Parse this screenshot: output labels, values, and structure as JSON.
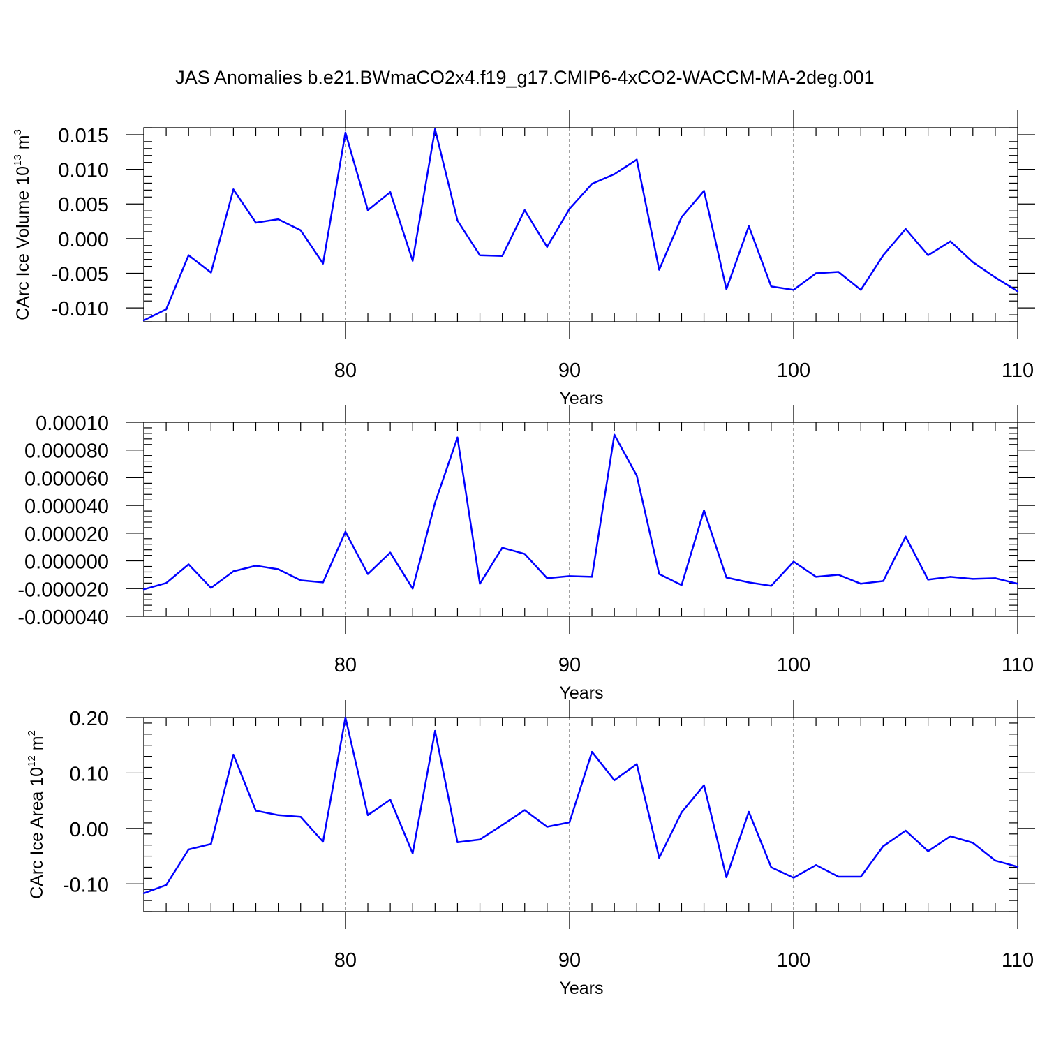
{
  "title": "JAS Anomalies b.e21.BWmaCO2x4.f19_g17.CMIP6-4xCO2-WACCM-MA-2deg.001",
  "colors": {
    "line": "#0000ff",
    "axis": "#000000",
    "grid": "#555555"
  },
  "chart_data": [
    {
      "type": "line",
      "ylabel": {
        "text": "CArc Ice Volume 10",
        "exp": "13",
        "unit": " m",
        "unit_exp": "3"
      },
      "xlabel": "Years",
      "xlim": [
        71,
        110
      ],
      "ylim": [
        -0.012,
        0.016
      ],
      "xticks": [
        80,
        90,
        100,
        110
      ],
      "xtick_labels": [
        "80",
        "90",
        "100",
        "110"
      ],
      "yticks": [
        -0.01,
        -0.005,
        0.0,
        0.005,
        0.01,
        0.015
      ],
      "ytick_labels": [
        "-0.010",
        "-0.005",
        "0.000",
        "0.005",
        "0.010",
        "0.015"
      ],
      "gridlines_x": [
        80,
        90,
        100
      ],
      "x": [
        71,
        72,
        73,
        74,
        75,
        76,
        77,
        78,
        79,
        80,
        81,
        82,
        83,
        84,
        85,
        86,
        87,
        88,
        89,
        90,
        91,
        92,
        93,
        94,
        95,
        96,
        97,
        98,
        99,
        100,
        101,
        102,
        103,
        104,
        105,
        106,
        107,
        108,
        109,
        110
      ],
      "values": [
        -0.0118,
        -0.0102,
        -0.0024,
        -0.0049,
        0.0071,
        0.0023,
        0.0028,
        0.0012,
        -0.0036,
        0.0153,
        0.0041,
        0.0067,
        -0.0032,
        0.0158,
        0.0026,
        -0.0024,
        -0.0025,
        0.0041,
        -0.0012,
        0.0043,
        0.0079,
        0.0093,
        0.0114,
        -0.0045,
        0.0031,
        0.0069,
        -0.0073,
        0.0018,
        -0.0069,
        -0.0074,
        -0.005,
        -0.0048,
        -0.0074,
        -0.0024,
        0.0014,
        -0.0024,
        -0.0004,
        -0.0034,
        -0.0056,
        -0.0076
      ]
    },
    {
      "type": "line",
      "ylabel": null,
      "xlabel": "Years",
      "xlim": [
        71,
        110
      ],
      "ylim": [
        -4e-05,
        0.0001
      ],
      "xticks": [
        80,
        90,
        100,
        110
      ],
      "xtick_labels": [
        "80",
        "90",
        "100",
        "110"
      ],
      "yticks": [
        -4e-05,
        -2e-05,
        0.0,
        2e-05,
        4e-05,
        6e-05,
        8e-05,
        0.0001
      ],
      "ytick_labels": [
        "-0.000040",
        "-0.000020",
        "0.000000",
        "0.000020",
        "0.000040",
        "0.000060",
        "0.000080",
        "0.00010"
      ],
      "gridlines_x": [
        80,
        90,
        100
      ],
      "x": [
        71,
        72,
        73,
        74,
        75,
        76,
        77,
        78,
        79,
        80,
        81,
        82,
        83,
        84,
        85,
        86,
        87,
        88,
        89,
        90,
        91,
        92,
        93,
        94,
        95,
        96,
        97,
        98,
        99,
        100,
        101,
        102,
        103,
        104,
        105,
        106,
        107,
        108,
        109,
        110
      ],
      "values": [
        -2.05e-05,
        -1.6e-05,
        -2.5e-06,
        -1.95e-05,
        -7.5e-06,
        -3.5e-06,
        -6e-06,
        -1.4e-05,
        -1.55e-05,
        2.1e-05,
        -9.5e-06,
        6e-06,
        -2e-05,
        4.2e-05,
        8.9e-05,
        -1.65e-05,
        9.5e-06,
        5e-06,
        -1.25e-05,
        -1.1e-05,
        -1.15e-05,
        9.1e-05,
        6.15e-05,
        -9.5e-06,
        -1.75e-05,
        3.65e-05,
        -1.2e-05,
        -1.55e-05,
        -1.8e-05,
        -5e-07,
        -1.15e-05,
        -1e-05,
        -1.65e-05,
        -1.45e-05,
        1.75e-05,
        -1.35e-05,
        -1.15e-05,
        -1.3e-05,
        -1.25e-05,
        -1.65e-05
      ]
    },
    {
      "type": "line",
      "ylabel": {
        "text": "CArc Ice Area 10",
        "exp": "12",
        "unit": " m",
        "unit_exp": "2"
      },
      "xlabel": "Years",
      "xlim": [
        71,
        110
      ],
      "ylim": [
        -0.15,
        0.2
      ],
      "xticks": [
        80,
        90,
        100,
        110
      ],
      "xtick_labels": [
        "80",
        "90",
        "100",
        "110"
      ],
      "yticks": [
        -0.1,
        0.0,
        0.1,
        0.2
      ],
      "ytick_labels": [
        "-0.10",
        "0.00",
        "0.10",
        "0.20"
      ],
      "gridlines_x": [
        80,
        90,
        100
      ],
      "x": [
        71,
        72,
        73,
        74,
        75,
        76,
        77,
        78,
        79,
        80,
        81,
        82,
        83,
        84,
        85,
        86,
        87,
        88,
        89,
        90,
        91,
        92,
        93,
        94,
        95,
        96,
        97,
        98,
        99,
        100,
        101,
        102,
        103,
        104,
        105,
        106,
        107,
        108,
        109,
        110
      ],
      "values": [
        -0.117,
        -0.102,
        -0.038,
        -0.028,
        0.133,
        0.032,
        0.024,
        0.021,
        -0.024,
        0.2,
        0.024,
        0.052,
        -0.045,
        0.176,
        -0.025,
        -0.02,
        0.006,
        0.033,
        0.003,
        0.011,
        0.138,
        0.087,
        0.116,
        -0.053,
        0.029,
        0.078,
        -0.088,
        0.03,
        -0.07,
        -0.089,
        -0.066,
        -0.087,
        -0.087,
        -0.032,
        -0.004,
        -0.041,
        -0.014,
        -0.026,
        -0.058,
        -0.069
      ]
    }
  ]
}
